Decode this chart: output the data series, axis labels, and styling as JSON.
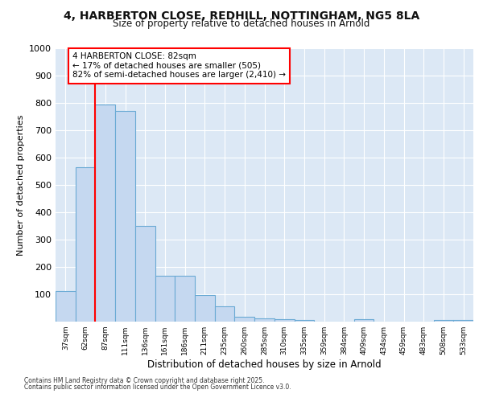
{
  "title_line1": "4, HARBERTON CLOSE, REDHILL, NOTTINGHAM, NG5 8LA",
  "title_line2": "Size of property relative to detached houses in Arnold",
  "xlabel": "Distribution of detached houses by size in Arnold",
  "ylabel": "Number of detached properties",
  "categories": [
    "37sqm",
    "62sqm",
    "87sqm",
    "111sqm",
    "136sqm",
    "161sqm",
    "186sqm",
    "211sqm",
    "235sqm",
    "260sqm",
    "285sqm",
    "310sqm",
    "335sqm",
    "359sqm",
    "384sqm",
    "409sqm",
    "434sqm",
    "459sqm",
    "483sqm",
    "508sqm",
    "533sqm"
  ],
  "values": [
    113,
    565,
    795,
    770,
    350,
    168,
    168,
    98,
    55,
    18,
    12,
    10,
    5,
    0,
    0,
    8,
    0,
    0,
    0,
    5,
    5
  ],
  "bar_color": "#c5d8f0",
  "bar_edge_color": "#6aaad4",
  "property_line_index": 2,
  "annotation_title": "4 HARBERTON CLOSE: 82sqm",
  "annotation_line2": "← 17% of detached houses are smaller (505)",
  "annotation_line3": "82% of semi-detached houses are larger (2,410) →",
  "annotation_box_color": "#cc0000",
  "ylim": [
    0,
    1000
  ],
  "yticks": [
    0,
    100,
    200,
    300,
    400,
    500,
    600,
    700,
    800,
    900,
    1000
  ],
  "plot_bg_color": "#dce8f5",
  "fig_bg_color": "#ffffff",
  "footer_line1": "Contains HM Land Registry data © Crown copyright and database right 2025.",
  "footer_line2": "Contains public sector information licensed under the Open Government Licence v3.0."
}
